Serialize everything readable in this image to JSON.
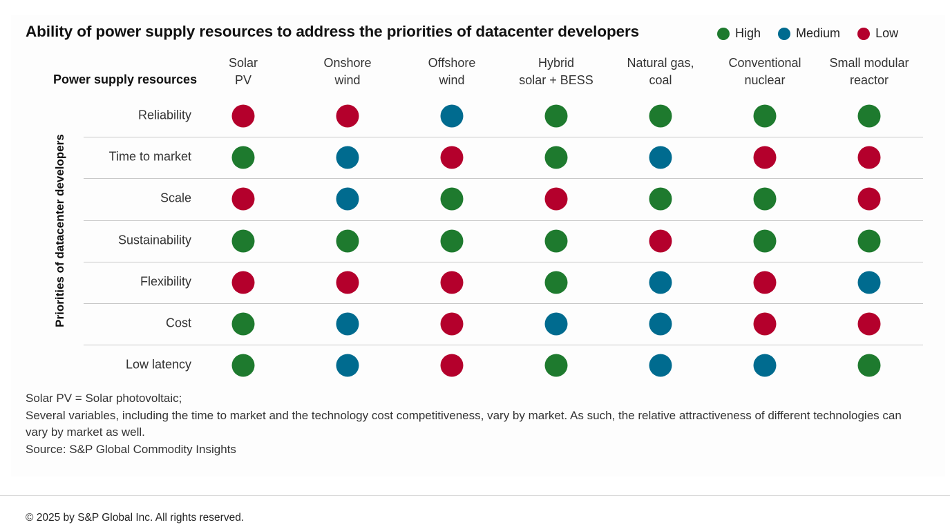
{
  "chart_data": {
    "type": "table",
    "title": "Ability of power supply resources to address the priorities of datacenter developers",
    "column_header_label": "Power supply resources",
    "row_axis_label": "Priorities of datacenter developers",
    "legend": [
      {
        "key": "High",
        "label": "High",
        "color": "#1e7a2e"
      },
      {
        "key": "Medium",
        "label": "Medium",
        "color": "#006b8f"
      },
      {
        "key": "Low",
        "label": "Low",
        "color": "#b4002c"
      }
    ],
    "columns": [
      {
        "line1": "Solar",
        "line2": "PV"
      },
      {
        "line1": "Onshore",
        "line2": "wind"
      },
      {
        "line1": "Offshore",
        "line2": "wind"
      },
      {
        "line1": "Hybrid",
        "line2": "solar + BESS"
      },
      {
        "line1": "Natural gas,",
        "line2": "coal"
      },
      {
        "line1": "Conventional",
        "line2": "nuclear"
      },
      {
        "line1": "Small modular",
        "line2": "reactor"
      }
    ],
    "rows": [
      {
        "label": "Reliability",
        "values": [
          "Low",
          "Low",
          "Medium",
          "High",
          "High",
          "High",
          "High"
        ]
      },
      {
        "label": "Time to market",
        "values": [
          "High",
          "Medium",
          "Low",
          "High",
          "Medium",
          "Low",
          "Low"
        ]
      },
      {
        "label": "Scale",
        "values": [
          "Low",
          "Medium",
          "High",
          "Low",
          "High",
          "High",
          "Low"
        ]
      },
      {
        "label": "Sustainability",
        "values": [
          "High",
          "High",
          "High",
          "High",
          "Low",
          "High",
          "High"
        ]
      },
      {
        "label": "Flexibility",
        "values": [
          "Low",
          "Low",
          "Low",
          "High",
          "Medium",
          "Low",
          "Medium"
        ]
      },
      {
        "label": "Cost",
        "values": [
          "High",
          "Medium",
          "Low",
          "Medium",
          "Medium",
          "Low",
          "Low"
        ]
      },
      {
        "label": "Low latency",
        "values": [
          "High",
          "Medium",
          "Low",
          "High",
          "Medium",
          "Medium",
          "High"
        ]
      }
    ]
  },
  "notes": [
    "Solar PV = Solar photovoltaic;",
    "Several variables, including the time to market and the technology cost competitiveness, vary by market. As such, the relative attractiveness of different technologies can vary by market as well.",
    "Source: S&P Global Commodity Insights"
  ],
  "copyright": "© 2025 by S&P Global Inc. All rights reserved."
}
